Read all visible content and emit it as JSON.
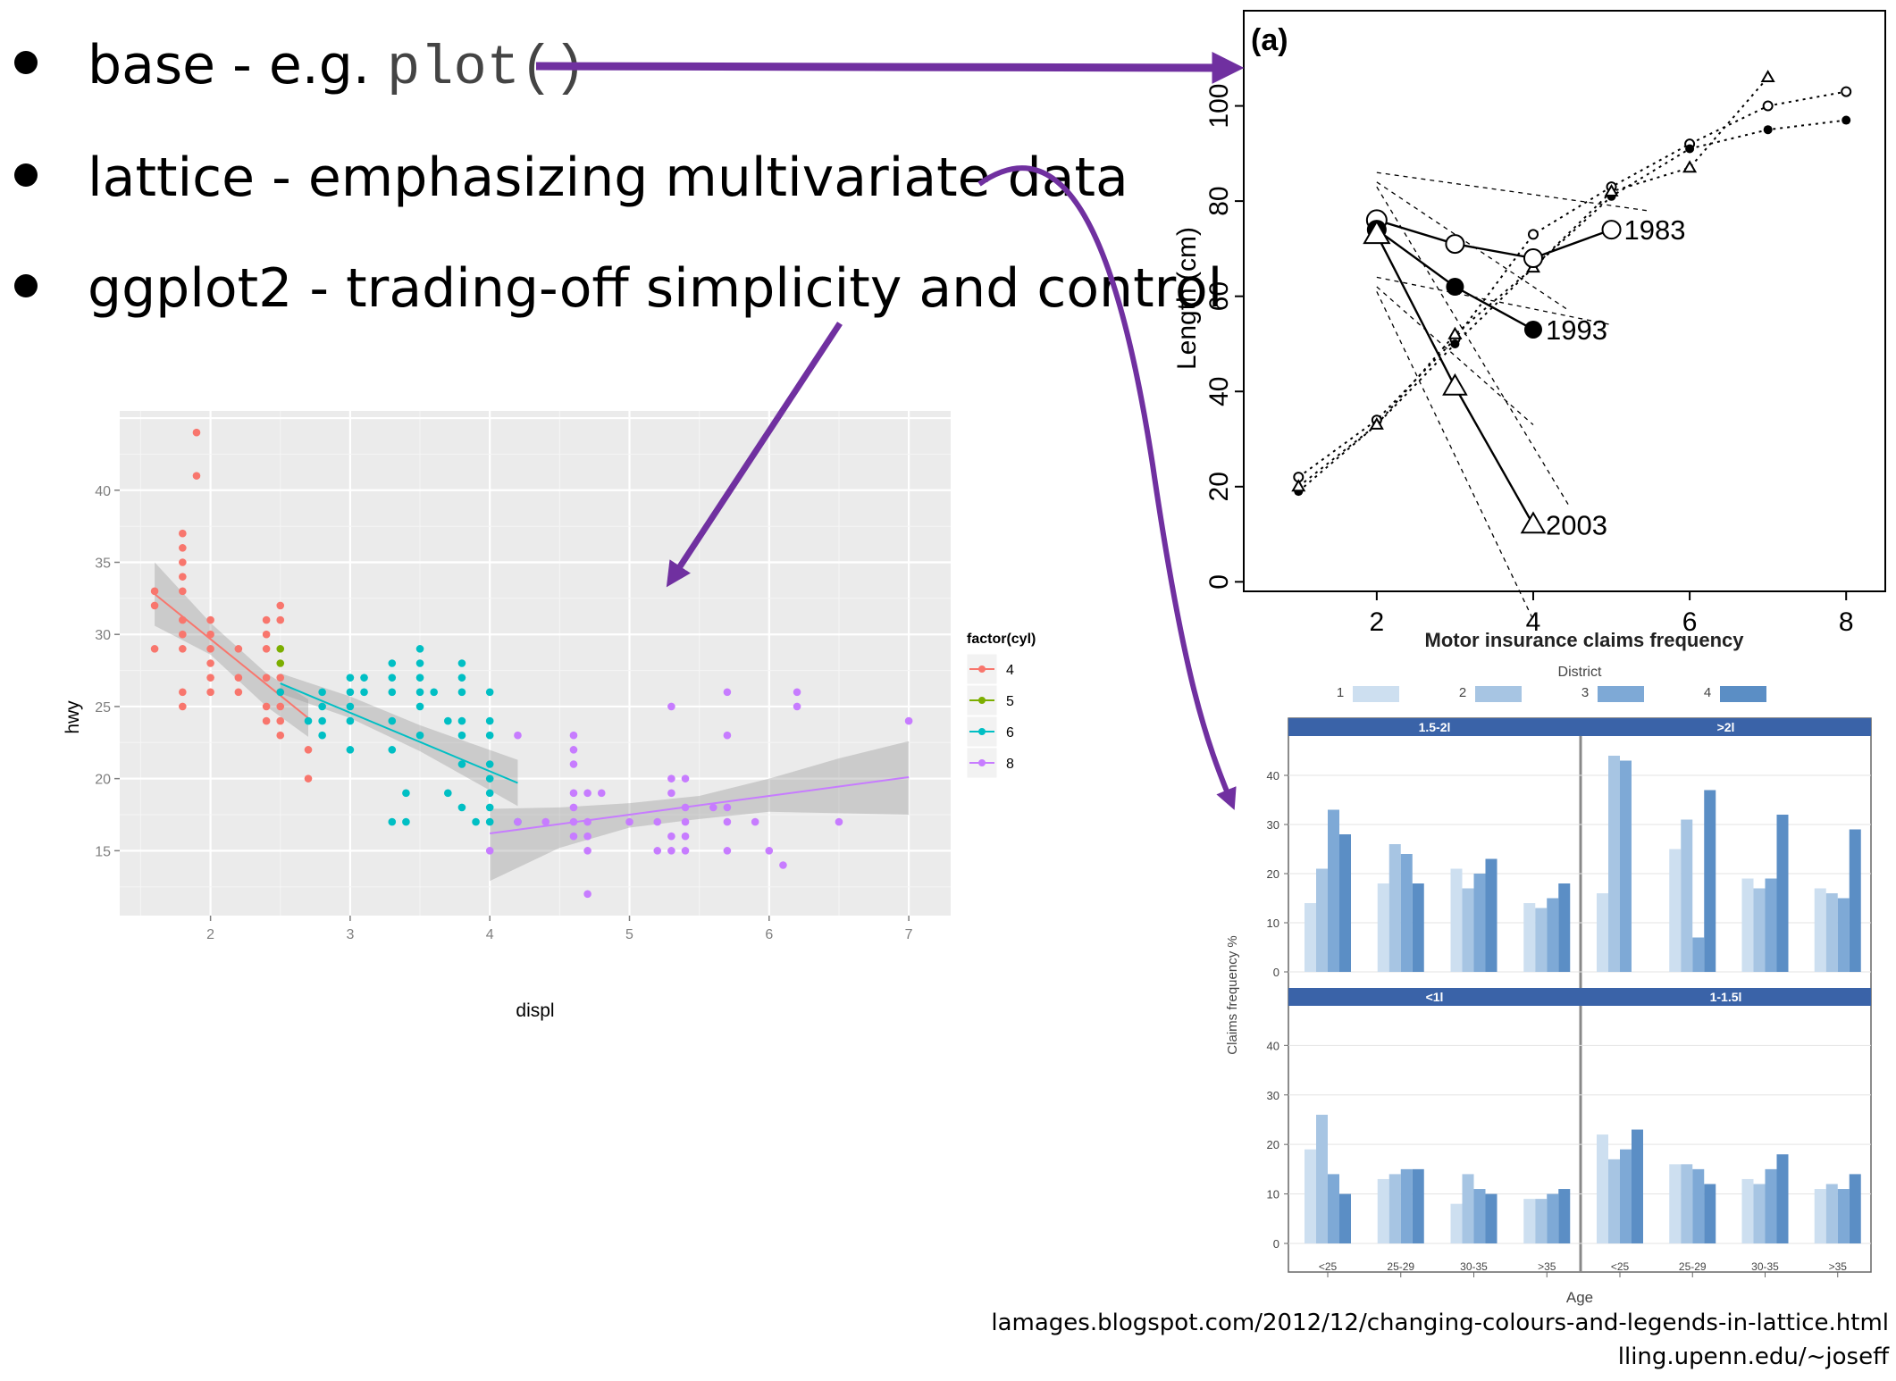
{
  "bullets": [
    {
      "text": "base - e.g. ",
      "code": "plot()"
    },
    {
      "text": "lattice - emphasizing multivariate data"
    },
    {
      "text": "ggplot2 - trading-off simplicity and control"
    }
  ],
  "urls": [
    "lamages.blogspot.com/2012/12/changing-colours-and-legends-in-lattice.html",
    "lling.upenn.edu/~joseff"
  ],
  "colors": {
    "arrow": "#7030a0",
    "cyl4": "#f8766d",
    "cyl5": "#7cae00",
    "cyl6": "#00bfc4",
    "cyl8": "#c77cff",
    "ggpanel": "#ebebeb"
  },
  "chart_data": [
    {
      "id": "ggplot",
      "type": "scatter",
      "xlabel": "displ",
      "ylabel": "hwy",
      "xlim": [
        1.35,
        7.3
      ],
      "ylim": [
        10.5,
        45.5
      ],
      "xticks": [
        2,
        3,
        4,
        5,
        6,
        7
      ],
      "yticks": [
        15,
        20,
        25,
        30,
        35,
        40
      ],
      "legend": {
        "title": "factor(cyl)",
        "placement": "right",
        "entries": [
          "4",
          "5",
          "6",
          "8"
        ]
      },
      "series": [
        {
          "name": "4",
          "color": "#f8766d",
          "points": [
            [
              1.6,
              33
            ],
            [
              1.6,
              32
            ],
            [
              1.6,
              29
            ],
            [
              1.8,
              37
            ],
            [
              1.8,
              36
            ],
            [
              1.8,
              35
            ],
            [
              1.8,
              34
            ],
            [
              1.8,
              33
            ],
            [
              1.8,
              31
            ],
            [
              1.8,
              30
            ],
            [
              1.8,
              29
            ],
            [
              1.8,
              26
            ],
            [
              1.8,
              25
            ],
            [
              1.9,
              44
            ],
            [
              1.9,
              41
            ],
            [
              2,
              31
            ],
            [
              2,
              30
            ],
            [
              2,
              29
            ],
            [
              2,
              28
            ],
            [
              2,
              27
            ],
            [
              2,
              26
            ],
            [
              2.2,
              29
            ],
            [
              2.2,
              27
            ],
            [
              2.2,
              26
            ],
            [
              2.4,
              31
            ],
            [
              2.4,
              30
            ],
            [
              2.4,
              29
            ],
            [
              2.4,
              27
            ],
            [
              2.4,
              25
            ],
            [
              2.4,
              24
            ],
            [
              2.5,
              32
            ],
            [
              2.5,
              31
            ],
            [
              2.5,
              27
            ],
            [
              2.5,
              26
            ],
            [
              2.5,
              25
            ],
            [
              2.5,
              24
            ],
            [
              2.5,
              23
            ],
            [
              2.7,
              22
            ],
            [
              2.7,
              20
            ]
          ],
          "fit": [
            [
              1.6,
              32.8
            ],
            [
              2.7,
              24.2
            ]
          ],
          "band": [
            [
              1.6,
              35
            ],
            [
              2.0,
              30.8
            ],
            [
              2.4,
              27.3
            ],
            [
              2.7,
              25.5
            ],
            [
              2.7,
              22.9
            ],
            [
              2.4,
              25.0
            ],
            [
              2.0,
              28.6
            ],
            [
              1.6,
              30.6
            ]
          ]
        },
        {
          "name": "5",
          "color": "#7cae00",
          "points": [
            [
              2.5,
              29
            ],
            [
              2.5,
              28
            ]
          ]
        },
        {
          "name": "6",
          "color": "#00bfc4",
          "points": [
            [
              2.5,
              26
            ],
            [
              2.7,
              24
            ],
            [
              2.8,
              26
            ],
            [
              2.8,
              25
            ],
            [
              2.8,
              24
            ],
            [
              2.8,
              23
            ],
            [
              3,
              27
            ],
            [
              3,
              26
            ],
            [
              3,
              25
            ],
            [
              3,
              24
            ],
            [
              3,
              22
            ],
            [
              3.1,
              27
            ],
            [
              3.1,
              26
            ],
            [
              3.3,
              28
            ],
            [
              3.3,
              27
            ],
            [
              3.3,
              26
            ],
            [
              3.3,
              24
            ],
            [
              3.3,
              22
            ],
            [
              3.3,
              17
            ],
            [
              3.4,
              19
            ],
            [
              3.4,
              17
            ],
            [
              3.5,
              29
            ],
            [
              3.5,
              28
            ],
            [
              3.5,
              27
            ],
            [
              3.5,
              26
            ],
            [
              3.5,
              25
            ],
            [
              3.5,
              23
            ],
            [
              3.6,
              26
            ],
            [
              3.7,
              19
            ],
            [
              3.7,
              24
            ],
            [
              3.8,
              28
            ],
            [
              3.8,
              27
            ],
            [
              3.8,
              26
            ],
            [
              3.8,
              24
            ],
            [
              3.8,
              23
            ],
            [
              3.8,
              21
            ],
            [
              3.8,
              18
            ],
            [
              3.9,
              17
            ],
            [
              4,
              26
            ],
            [
              4,
              24
            ],
            [
              4,
              23
            ],
            [
              4,
              21
            ],
            [
              4,
              20
            ],
            [
              4,
              19
            ],
            [
              4,
              18
            ],
            [
              4,
              17
            ],
            [
              4.2,
              17
            ]
          ],
          "fit": [
            [
              2.5,
              26.6
            ],
            [
              4.2,
              19.7
            ]
          ],
          "band": [
            [
              2.5,
              27.3
            ],
            [
              3.0,
              25.7
            ],
            [
              3.5,
              23.7
            ],
            [
              4.2,
              21.3
            ],
            [
              4.2,
              18.1
            ],
            [
              3.5,
              21.9
            ],
            [
              3.0,
              24.2
            ],
            [
              2.5,
              25.9
            ]
          ]
        },
        {
          "name": "8",
          "color": "#c77cff",
          "points": [
            [
              4,
              15
            ],
            [
              4.2,
              23
            ],
            [
              4.2,
              17
            ],
            [
              4.4,
              17
            ],
            [
              4.6,
              23
            ],
            [
              4.6,
              22
            ],
            [
              4.6,
              21
            ],
            [
              4.6,
              19
            ],
            [
              4.6,
              18
            ],
            [
              4.6,
              17
            ],
            [
              4.6,
              16
            ],
            [
              4.7,
              19
            ],
            [
              4.7,
              17
            ],
            [
              4.7,
              16
            ],
            [
              4.7,
              15
            ],
            [
              4.7,
              12
            ],
            [
              4.8,
              19
            ],
            [
              5,
              17
            ],
            [
              5.2,
              17
            ],
            [
              5.2,
              15
            ],
            [
              5.3,
              25
            ],
            [
              5.3,
              20
            ],
            [
              5.3,
              19
            ],
            [
              5.3,
              16
            ],
            [
              5.3,
              15
            ],
            [
              5.4,
              18
            ],
            [
              5.4,
              17
            ],
            [
              5.4,
              16
            ],
            [
              5.4,
              15
            ],
            [
              5.4,
              20
            ],
            [
              5.6,
              18
            ],
            [
              5.7,
              26
            ],
            [
              5.7,
              23
            ],
            [
              5.7,
              18
            ],
            [
              5.7,
              17
            ],
            [
              5.7,
              15
            ],
            [
              5.9,
              17
            ],
            [
              6,
              15
            ],
            [
              6.1,
              14
            ],
            [
              6.2,
              26
            ],
            [
              6.2,
              25
            ],
            [
              6.5,
              17
            ],
            [
              7,
              24
            ]
          ],
          "fit": [
            [
              4.0,
              16.2
            ],
            [
              7.0,
              20.1
            ]
          ],
          "band": [
            [
              4.0,
              17.9
            ],
            [
              4.5,
              18.0
            ],
            [
              5.0,
              18.3
            ],
            [
              5.5,
              18.8
            ],
            [
              6.0,
              20.0
            ],
            [
              6.5,
              21.4
            ],
            [
              7.0,
              22.6
            ],
            [
              7.0,
              17.5
            ],
            [
              6.5,
              17.6
            ],
            [
              6.0,
              17.7
            ],
            [
              5.5,
              17.2
            ],
            [
              5.0,
              16.6
            ],
            [
              4.5,
              15.2
            ],
            [
              4.0,
              12.9
            ]
          ]
        }
      ]
    },
    {
      "id": "base",
      "type": "line",
      "panel_label": "(a)",
      "xlabel": "Motor insurance claims frequency",
      "ylabel": "Length (cm)",
      "xlim": [
        0.3,
        8.5
      ],
      "ylim": [
        -2,
        120
      ],
      "xticks": [
        2,
        4,
        6,
        8
      ],
      "yticks": [
        0,
        20,
        40,
        60,
        80,
        100
      ],
      "series": [
        {
          "name": "1983",
          "marker": "open-circle",
          "points": [
            [
              2,
              76
            ],
            [
              3,
              71
            ],
            [
              4,
              68
            ],
            [
              5,
              74
            ]
          ]
        },
        {
          "name": "1993",
          "marker": "filled-circle",
          "points": [
            [
              2,
              74
            ],
            [
              3,
              62
            ],
            [
              4,
              53
            ]
          ]
        },
        {
          "name": "2003",
          "marker": "open-triangle",
          "points": [
            [
              2,
              73
            ],
            [
              3,
              41
            ],
            [
              4,
              12
            ]
          ]
        }
      ],
      "dotted_series": [
        {
          "marker": "open-circle",
          "points": [
            [
              1,
              22
            ],
            [
              2,
              34
            ],
            [
              3,
              51
            ],
            [
              4,
              73
            ],
            [
              5,
              83
            ],
            [
              6,
              92
            ],
            [
              7,
              100
            ],
            [
              8,
              103
            ]
          ]
        },
        {
          "marker": "filled-circle",
          "points": [
            [
              1,
              19
            ],
            [
              2,
              33
            ],
            [
              3,
              50
            ],
            [
              4,
              66
            ],
            [
              5,
              81
            ],
            [
              6,
              91
            ],
            [
              7,
              95
            ],
            [
              8,
              97
            ]
          ]
        },
        {
          "marker": "open-triangle",
          "points": [
            [
              1,
              20
            ],
            [
              2,
              33
            ],
            [
              3,
              52
            ],
            [
              4,
              66
            ],
            [
              5,
              82
            ],
            [
              6,
              87
            ],
            [
              7,
              106
            ]
          ]
        }
      ]
    },
    {
      "id": "lattice",
      "type": "bar",
      "xlabel": "Age",
      "ylabel": "Claims frequency %",
      "legend": {
        "title": "District",
        "placement": "top",
        "entries": [
          "1",
          "2",
          "3",
          "4"
        ],
        "colors": [
          "#cddff0",
          "#a7c5e3",
          "#7ea9d6",
          "#5b8ec5"
        ]
      },
      "ylim": [
        0,
        48
      ],
      "yticks": [
        0,
        10,
        20,
        30,
        40
      ],
      "categories": [
        "<25",
        "25-29",
        "30-35",
        ">35"
      ],
      "panels": [
        {
          "strip": "1.5-2l",
          "values": [
            [
              14,
              21,
              33,
              28
            ],
            [
              18,
              26,
              24,
              18
            ],
            [
              21,
              17,
              20,
              23
            ],
            [
              14,
              13,
              15,
              18
            ]
          ]
        },
        {
          "strip": ">2l",
          "values": [
            [
              16,
              44,
              43,
              null
            ],
            [
              25,
              31,
              7,
              37
            ],
            [
              19,
              17,
              19,
              32
            ],
            [
              17,
              16,
              15,
              29
            ]
          ]
        },
        {
          "strip": "<1l",
          "values": [
            [
              19,
              26,
              14,
              10
            ],
            [
              13,
              14,
              15,
              15
            ],
            [
              8,
              14,
              11,
              10
            ],
            [
              9,
              9,
              10,
              11
            ]
          ]
        },
        {
          "strip": "1-1.5l",
          "values": [
            [
              22,
              17,
              19,
              23
            ],
            [
              16,
              16,
              15,
              12
            ],
            [
              13,
              12,
              15,
              18
            ],
            [
              11,
              12,
              11,
              14
            ]
          ]
        }
      ]
    }
  ]
}
